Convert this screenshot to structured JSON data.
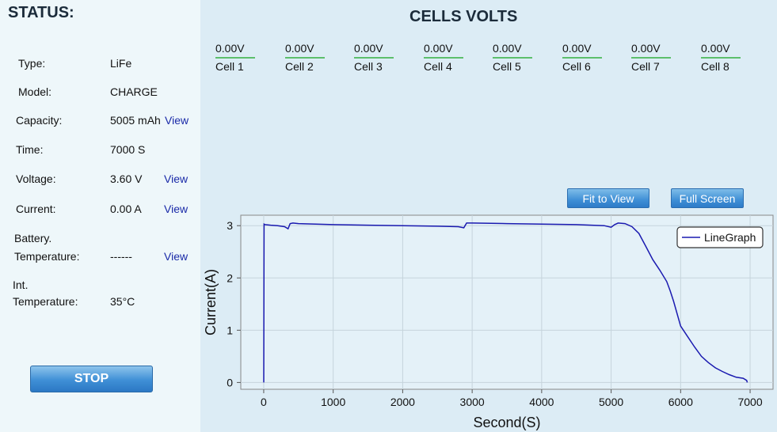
{
  "status": {
    "title": "STATUS:",
    "type_label": "Type:",
    "type_value": "LiFe",
    "model_label": "Model:",
    "model_value": "CHARGE",
    "capacity_label": "Capacity:",
    "capacity_value": "5005 mAh",
    "capacity_link": "View",
    "time_label": "Time:",
    "time_value": "7000 S",
    "voltage_label": "Voltage:",
    "voltage_value": "3.60 V",
    "voltage_link": "View",
    "current_label": "Current:",
    "current_value": "0.00 A",
    "current_link": "View",
    "battery_temp_label_1": "Battery.",
    "battery_temp_label_2": "Temperature:",
    "battery_temp_value": "------",
    "battery_temp_link": "View",
    "int_temp_label_1": "Int.",
    "int_temp_label_2": "Temperature:",
    "int_temp_value": "35°C",
    "stop_label": "STOP"
  },
  "cells": {
    "title": "CELLS VOLTS",
    "items": [
      {
        "value": "0.00V",
        "name": "Cell 1"
      },
      {
        "value": "0.00V",
        "name": "Cell 2"
      },
      {
        "value": "0.00V",
        "name": "Cell 3"
      },
      {
        "value": "0.00V",
        "name": "Cell 4"
      },
      {
        "value": "0.00V",
        "name": "Cell 5"
      },
      {
        "value": "0.00V",
        "name": "Cell 6"
      },
      {
        "value": "0.00V",
        "name": "Cell 7"
      },
      {
        "value": "0.00V",
        "name": "Cell 8"
      }
    ]
  },
  "toolbar": {
    "fit_label": "Fit to View",
    "full_label": "Full Screen"
  },
  "colors": {
    "line": "#1a1ab0",
    "cell_underline": "#5cbf6c",
    "button": "#3f8fd6",
    "link": "#1a2aa8"
  },
  "chart_data": {
    "type": "line",
    "xlabel": "Second(S)",
    "ylabel": "Current(A)",
    "xlim": [
      -330,
      7330
    ],
    "ylim": [
      -0.13,
      3.2
    ],
    "xticks": [
      0,
      1000,
      2000,
      3000,
      4000,
      5000,
      6000,
      7000
    ],
    "yticks": [
      0,
      1,
      2,
      3
    ],
    "grid": true,
    "legend_position": "top-right",
    "series": [
      {
        "name": "LineGraph",
        "x": [
          0,
          5,
          20,
          100,
          200,
          300,
          350,
          380,
          420,
          500,
          1000,
          1500,
          2000,
          2500,
          2800,
          2880,
          2920,
          3000,
          3500,
          4000,
          4500,
          4900,
          5000,
          5050,
          5100,
          5200,
          5300,
          5400,
          5500,
          5600,
          5700,
          5800,
          5850,
          5900,
          6000,
          6100,
          6200,
          6300,
          6400,
          6500,
          6600,
          6700,
          6800,
          6900,
          6950,
          6960
        ],
        "y": [
          0,
          3.03,
          3.02,
          3.01,
          3.0,
          2.98,
          2.94,
          3.04,
          3.05,
          3.04,
          3.02,
          3.01,
          3.0,
          2.99,
          2.98,
          2.96,
          3.05,
          3.05,
          3.04,
          3.03,
          3.02,
          3.0,
          2.97,
          3.02,
          3.05,
          3.04,
          2.98,
          2.85,
          2.6,
          2.35,
          2.15,
          1.93,
          1.75,
          1.55,
          1.08,
          0.88,
          0.68,
          0.5,
          0.38,
          0.28,
          0.21,
          0.15,
          0.1,
          0.08,
          0.04,
          0.0
        ]
      }
    ]
  }
}
